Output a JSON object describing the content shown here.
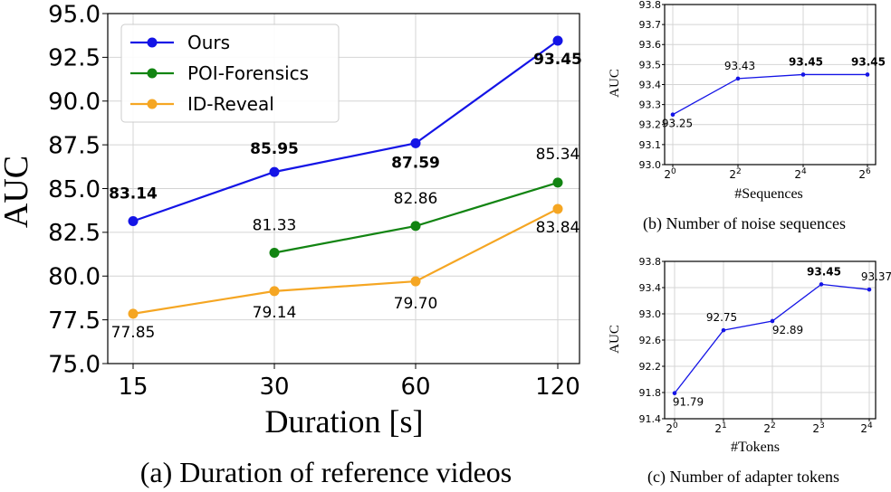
{
  "chart_data": [
    {
      "type": "line",
      "caption": "(a) Duration of reference videos",
      "xlabel": "Duration [s]",
      "ylabel": "AUC",
      "categories": [
        "15",
        "30",
        "60",
        "120"
      ],
      "ylim": [
        75.0,
        95.0
      ],
      "yticks": [
        "75.0",
        "77.5",
        "80.0",
        "82.5",
        "85.0",
        "87.5",
        "90.0",
        "92.5",
        "95.0"
      ],
      "grid": true,
      "legend_position": "upper-left",
      "series": [
        {
          "name": "Ours",
          "color": "#1414e6",
          "values": [
            83.14,
            85.95,
            87.59,
            93.45
          ],
          "labels": [
            "83.14",
            "85.95",
            "87.59",
            "93.45"
          ],
          "bold": true
        },
        {
          "name": "POI-Forensics",
          "color": "#128412",
          "values": [
            null,
            81.33,
            82.86,
            85.34
          ],
          "labels": [
            "",
            "81.33",
            "82.86",
            "85.34"
          ],
          "bold": false
        },
        {
          "name": "ID-Reveal",
          "color": "#f5a623",
          "values": [
            77.85,
            79.14,
            79.7,
            83.84
          ],
          "labels": [
            "77.85",
            "79.14",
            "79.70",
            "83.84"
          ],
          "bold": false
        }
      ]
    },
    {
      "type": "line",
      "caption": "(b) Number of noise sequences",
      "xlabel": "#Sequences",
      "ylabel": "AUC",
      "categories": [
        {
          "base": "2",
          "exp": "0"
        },
        {
          "base": "2",
          "exp": "2"
        },
        {
          "base": "2",
          "exp": "4"
        },
        {
          "base": "2",
          "exp": "6"
        }
      ],
      "ylim": [
        93.0,
        93.8
      ],
      "yticks": [
        "93.0",
        "93.1",
        "93.2",
        "93.3",
        "93.4",
        "93.5",
        "93.6",
        "93.7",
        "93.8"
      ],
      "grid": true,
      "series": [
        {
          "color": "#1414e6",
          "values": [
            93.25,
            93.43,
            93.45,
            93.45
          ],
          "labels": [
            "93.25",
            "93.43",
            "93.45",
            "93.45"
          ],
          "bold": [
            false,
            false,
            true,
            true
          ]
        }
      ]
    },
    {
      "type": "line",
      "caption": "(c) Number of adapter tokens",
      "xlabel": "#Tokens",
      "ylabel": "AUC",
      "categories": [
        {
          "base": "2",
          "exp": "0"
        },
        {
          "base": "2",
          "exp": "1"
        },
        {
          "base": "2",
          "exp": "2"
        },
        {
          "base": "2",
          "exp": "3"
        },
        {
          "base": "2",
          "exp": "4"
        }
      ],
      "ylim": [
        91.4,
        93.8
      ],
      "yticks": [
        "91.4",
        "91.8",
        "92.2",
        "92.6",
        "93.0",
        "93.4",
        "93.8"
      ],
      "grid": true,
      "series": [
        {
          "color": "#1414e6",
          "values": [
            91.79,
            92.75,
            92.89,
            93.45,
            93.37
          ],
          "labels": [
            "91.79",
            "92.75",
            "92.89",
            "93.45",
            "93.37"
          ],
          "bold": [
            false,
            false,
            false,
            true,
            false
          ]
        }
      ]
    }
  ]
}
